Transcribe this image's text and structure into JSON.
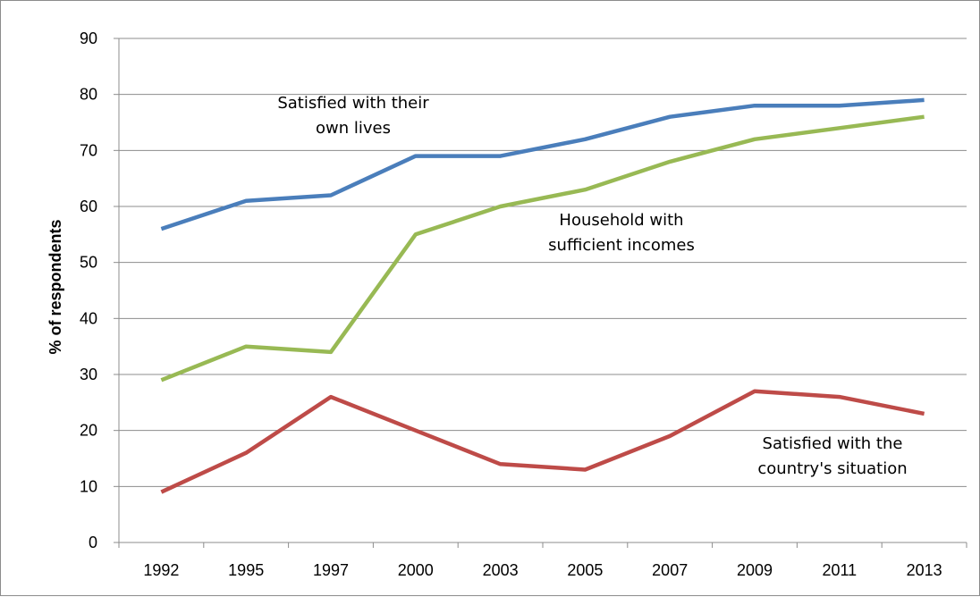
{
  "chart_data": {
    "type": "line",
    "title": "",
    "xlabel": "",
    "ylabel": "% of respondents",
    "ylim": [
      0,
      90
    ],
    "yticks": [
      0,
      10,
      20,
      30,
      40,
      50,
      60,
      70,
      80,
      90
    ],
    "categories": [
      "1992",
      "1995",
      "1997",
      "2000",
      "2003",
      "2005",
      "2007",
      "2009",
      "2011",
      "2013"
    ],
    "grid": true,
    "legend": "none",
    "series": [
      {
        "name": "Satisfied with their own lives",
        "label_lines": [
          "Satisfied with their",
          "own lives"
        ],
        "color": "#4a7ebb",
        "values": [
          56,
          61,
          62,
          69,
          69,
          72,
          76,
          78,
          78,
          79
        ]
      },
      {
        "name": "Household with sufficient incomes",
        "label_lines": [
          "Household with",
          "sufficient incomes"
        ],
        "color": "#98b954",
        "values": [
          29,
          35,
          34,
          55,
          60,
          63,
          68,
          72,
          74,
          76
        ]
      },
      {
        "name": "Satisfied with the country's situation",
        "label_lines": [
          "Satisfied with the",
          "country's situation"
        ],
        "color": "#be4b48",
        "values": [
          9,
          16,
          26,
          20,
          14,
          13,
          19,
          27,
          26,
          23
        ]
      }
    ]
  }
}
